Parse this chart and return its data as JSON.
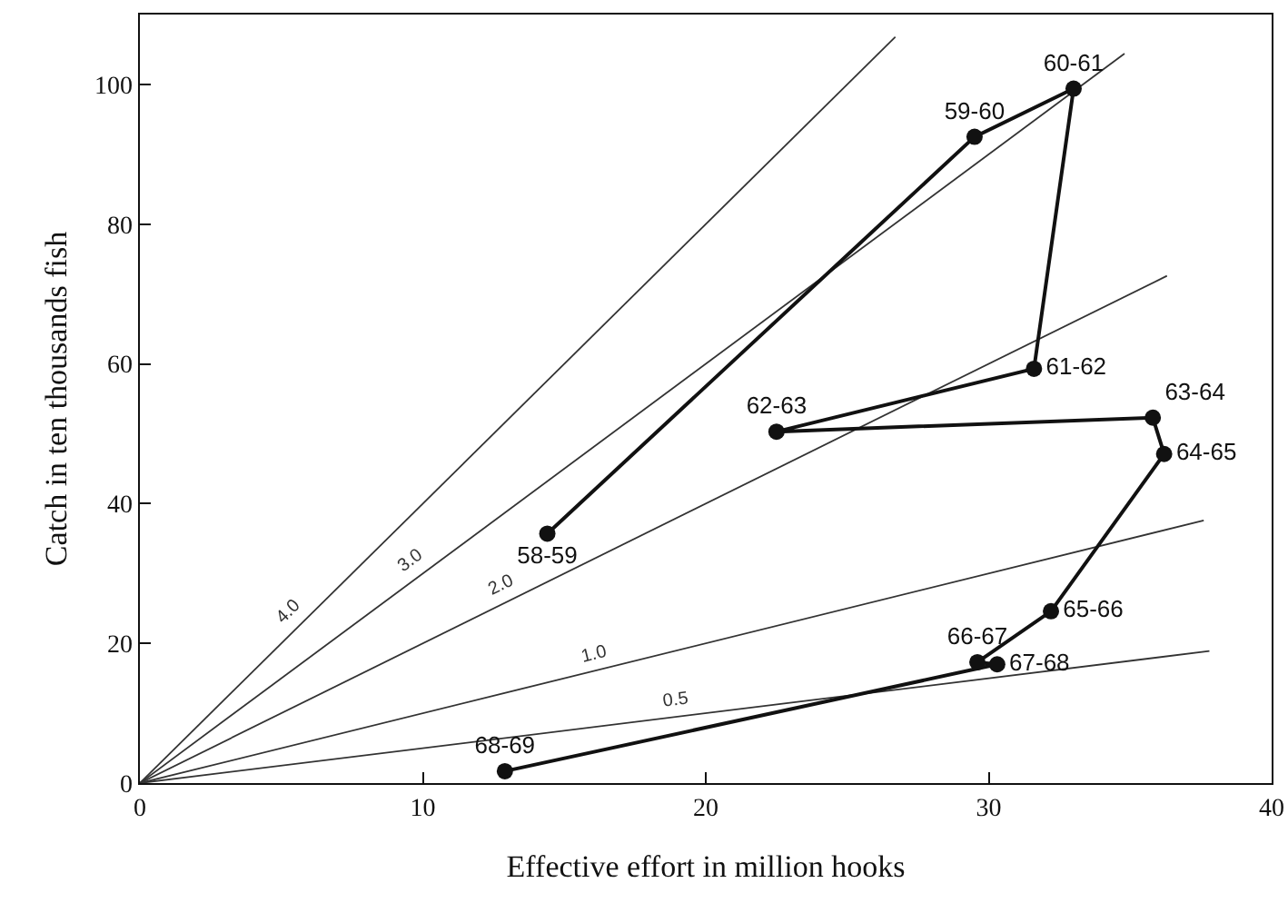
{
  "chart_data": {
    "type": "line",
    "xlabel": "Effective effort in million hooks",
    "ylabel": "Catch in ten thousands fish",
    "xlim": [
      0,
      40
    ],
    "ylim": [
      0,
      110
    ],
    "xticks": [
      0,
      10,
      20,
      30,
      40
    ],
    "yticks": [
      0,
      20,
      40,
      60,
      80,
      100
    ],
    "series": [
      {
        "name": "4.0",
        "marker": "none",
        "color": "#333333",
        "x": [
          0,
          26.7
        ],
        "values": [
          0,
          106.8
        ]
      },
      {
        "name": "3.0",
        "marker": "none",
        "color": "#333333",
        "x": [
          0,
          34.8
        ],
        "values": [
          0,
          104.4
        ]
      },
      {
        "name": "2.0",
        "marker": "none",
        "color": "#333333",
        "x": [
          0,
          36.3
        ],
        "values": [
          0,
          72.6
        ]
      },
      {
        "name": "1.0",
        "marker": "none",
        "color": "#333333",
        "x": [
          0,
          37.6
        ],
        "values": [
          0,
          37.6
        ]
      },
      {
        "name": "0.5",
        "marker": "none",
        "color": "#333333",
        "x": [
          0,
          37.8
        ],
        "values": [
          0,
          18.9
        ]
      },
      {
        "marker": "circle",
        "color": "#111111",
        "x": [
          14.4,
          29.5,
          33.0,
          31.6,
          22.5,
          35.8,
          36.2,
          32.2,
          29.6,
          30.3,
          12.9
        ],
        "values": [
          35.7,
          92.5,
          99.4,
          59.3,
          50.3,
          52.3,
          47.1,
          24.6,
          17.3,
          17.0,
          1.7
        ],
        "value_labels": [
          "58-59",
          "59-60",
          "60-61",
          "61-62",
          "62-63",
          "63-64",
          "64-65",
          "65-66",
          "66-67",
          "67-68",
          "68-69"
        ]
      }
    ]
  }
}
